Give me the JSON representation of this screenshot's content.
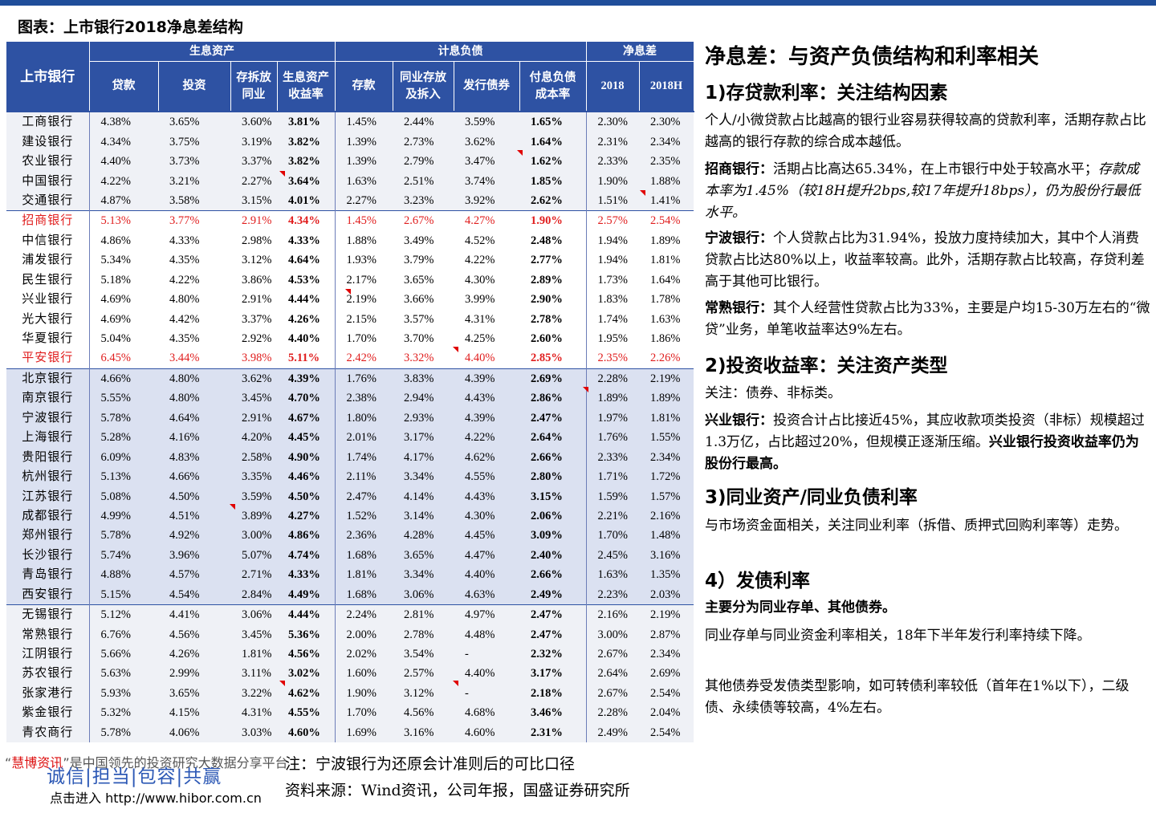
{
  "figure_title": "图表：上市银行2018净息差结构",
  "table": {
    "group_headers": {
      "bank": "上市银行",
      "assets": "生息资产",
      "liabilities": "计息负债",
      "nim": "净息差"
    },
    "sub_headers": {
      "loans": "贷款",
      "invest": "投资",
      "interbank_a_1": "存拆放",
      "interbank_a_2": "同业",
      "asset_yield_1": "生息资产",
      "asset_yield_2": "收益率",
      "deposits": "存款",
      "interbank_l_1": "同业存放",
      "interbank_l_2": "及拆入",
      "bonds": "发行债券",
      "liab_cost_1": "付息负债",
      "liab_cost_2": "成本率",
      "y2018": "2018",
      "y2018h": "2018H"
    },
    "rows": [
      [
        "工商银行",
        "4.38%",
        "3.65%",
        "3.60%",
        "3.81%",
        "1.45%",
        "2.44%",
        "3.59%",
        "1.65%",
        "2.30%",
        "2.30%"
      ],
      [
        "建设银行",
        "4.34%",
        "3.75%",
        "3.19%",
        "3.82%",
        "1.39%",
        "2.73%",
        "3.62%",
        "1.64%",
        "2.31%",
        "2.34%"
      ],
      [
        "农业银行",
        "4.40%",
        "3.73%",
        "3.37%",
        "3.82%",
        "1.39%",
        "2.79%",
        "3.47%",
        "1.62%",
        "2.33%",
        "2.35%"
      ],
      [
        "中国银行",
        "4.22%",
        "3.21%",
        "2.27%",
        "3.64%",
        "1.63%",
        "2.51%",
        "3.74%",
        "1.85%",
        "1.90%",
        "1.88%"
      ],
      [
        "交通银行",
        "4.87%",
        "3.58%",
        "3.15%",
        "4.01%",
        "2.27%",
        "3.23%",
        "3.92%",
        "2.62%",
        "1.51%",
        "1.41%"
      ],
      [
        "招商银行",
        "5.13%",
        "3.77%",
        "2.91%",
        "4.34%",
        "1.45%",
        "2.67%",
        "4.27%",
        "1.90%",
        "2.57%",
        "2.54%"
      ],
      [
        "中信银行",
        "4.86%",
        "4.33%",
        "2.98%",
        "4.33%",
        "1.88%",
        "3.49%",
        "4.52%",
        "2.48%",
        "1.94%",
        "1.89%"
      ],
      [
        "浦发银行",
        "5.34%",
        "4.35%",
        "3.12%",
        "4.64%",
        "1.93%",
        "3.79%",
        "4.22%",
        "2.77%",
        "1.94%",
        "1.81%"
      ],
      [
        "民生银行",
        "5.18%",
        "4.22%",
        "3.86%",
        "4.53%",
        "2.17%",
        "3.65%",
        "4.30%",
        "2.89%",
        "1.73%",
        "1.64%"
      ],
      [
        "兴业银行",
        "4.69%",
        "4.80%",
        "2.91%",
        "4.44%",
        "2.19%",
        "3.66%",
        "3.99%",
        "2.90%",
        "1.83%",
        "1.78%"
      ],
      [
        "光大银行",
        "4.69%",
        "4.42%",
        "3.37%",
        "4.26%",
        "2.15%",
        "3.57%",
        "4.31%",
        "2.78%",
        "1.74%",
        "1.63%"
      ],
      [
        "华夏银行",
        "5.04%",
        "4.35%",
        "2.92%",
        "4.40%",
        "1.70%",
        "3.70%",
        "4.25%",
        "2.60%",
        "1.95%",
        "1.86%"
      ],
      [
        "平安银行",
        "6.45%",
        "3.44%",
        "3.98%",
        "5.11%",
        "2.42%",
        "3.32%",
        "4.40%",
        "2.85%",
        "2.35%",
        "2.26%"
      ],
      [
        "北京银行",
        "4.66%",
        "4.80%",
        "3.62%",
        "4.39%",
        "1.76%",
        "3.83%",
        "4.39%",
        "2.69%",
        "2.28%",
        "2.19%"
      ],
      [
        "南京银行",
        "5.55%",
        "4.80%",
        "3.45%",
        "4.70%",
        "2.38%",
        "2.94%",
        "4.43%",
        "2.86%",
        "1.89%",
        "1.89%"
      ],
      [
        "宁波银行",
        "5.78%",
        "4.64%",
        "2.91%",
        "4.67%",
        "1.80%",
        "2.93%",
        "4.39%",
        "2.47%",
        "1.97%",
        "1.81%"
      ],
      [
        "上海银行",
        "5.28%",
        "4.16%",
        "4.20%",
        "4.45%",
        "2.01%",
        "3.17%",
        "4.22%",
        "2.64%",
        "1.76%",
        "1.55%"
      ],
      [
        "贵阳银行",
        "6.09%",
        "4.83%",
        "2.58%",
        "4.90%",
        "1.74%",
        "4.17%",
        "4.62%",
        "2.66%",
        "2.33%",
        "2.34%"
      ],
      [
        "杭州银行",
        "5.13%",
        "4.66%",
        "3.35%",
        "4.46%",
        "2.11%",
        "3.34%",
        "4.55%",
        "2.80%",
        "1.71%",
        "1.72%"
      ],
      [
        "江苏银行",
        "5.08%",
        "4.50%",
        "3.59%",
        "4.50%",
        "2.47%",
        "4.14%",
        "4.43%",
        "3.15%",
        "1.59%",
        "1.57%"
      ],
      [
        "成都银行",
        "4.99%",
        "4.51%",
        "3.89%",
        "4.27%",
        "1.52%",
        "3.14%",
        "4.30%",
        "2.06%",
        "2.21%",
        "2.16%"
      ],
      [
        "郑州银行",
        "5.78%",
        "4.92%",
        "3.00%",
        "4.86%",
        "2.36%",
        "4.28%",
        "4.45%",
        "3.09%",
        "1.70%",
        "1.48%"
      ],
      [
        "长沙银行",
        "5.74%",
        "3.96%",
        "5.07%",
        "4.74%",
        "1.68%",
        "3.65%",
        "4.47%",
        "2.40%",
        "2.45%",
        "3.16%"
      ],
      [
        "青岛银行",
        "4.88%",
        "4.57%",
        "2.71%",
        "4.33%",
        "1.81%",
        "3.34%",
        "4.40%",
        "2.66%",
        "1.63%",
        "1.35%"
      ],
      [
        "西安银行",
        "5.15%",
        "4.54%",
        "2.84%",
        "4.49%",
        "1.68%",
        "3.06%",
        "4.63%",
        "2.49%",
        "2.23%",
        "2.03%"
      ],
      [
        "无锡银行",
        "5.12%",
        "4.41%",
        "3.06%",
        "4.44%",
        "2.24%",
        "2.81%",
        "4.97%",
        "2.47%",
        "2.16%",
        "2.19%"
      ],
      [
        "常熟银行",
        "6.76%",
        "4.56%",
        "3.45%",
        "5.36%",
        "2.00%",
        "2.78%",
        "4.48%",
        "2.47%",
        "3.00%",
        "2.87%"
      ],
      [
        "江阴银行",
        "5.66%",
        "4.26%",
        "1.81%",
        "4.56%",
        "2.02%",
        "3.54%",
        "-",
        "2.32%",
        "2.67%",
        "2.34%"
      ],
      [
        "苏农银行",
        "5.63%",
        "2.99%",
        "3.11%",
        "3.02%",
        "1.60%",
        "2.57%",
        "4.40%",
        "3.17%",
        "2.64%",
        "2.69%"
      ],
      [
        "张家港行",
        "5.93%",
        "3.65%",
        "3.22%",
        "4.62%",
        "1.90%",
        "3.12%",
        "-",
        "2.18%",
        "2.67%",
        "2.54%"
      ],
      [
        "紫金银行",
        "5.32%",
        "4.15%",
        "4.31%",
        "4.55%",
        "1.70%",
        "4.56%",
        "4.68%",
        "3.46%",
        "2.28%",
        "2.04%"
      ],
      [
        "青农商行",
        "5.78%",
        "4.06%",
        "3.03%",
        "4.60%",
        "1.69%",
        "3.16%",
        "4.60%",
        "2.31%",
        "2.49%",
        "2.54%"
      ]
    ]
  },
  "right": {
    "title": "净息差：与资产负债结构和利率相关",
    "s1_heading": "1)存贷款利率：关注结构因素",
    "s1_p1": "个人/小微贷款占比越高的银行业容易获得较高的贷款利率，活期存款占比越高的银行存款的综合成本越低。",
    "s1_p2_label": "招商银行：",
    "s1_p2_text": "活期占比高达65.34%，在上市银行中处于较高水平；",
    "s1_p2_italic": "存款成本率为1.45%（较18H提升2bps,较17年提升18bps），仍为股份行最低水平。",
    "s1_p3_label": "宁波银行：",
    "s1_p3_text": "个人贷款占比为31.94%，投放力度持续加大，其中个人消费贷款占比达80%以上，收益率较高。此外，活期存款占比较高，存贷利差高于其他可比银行。",
    "s1_p4_label": "常熟银行：",
    "s1_p4_text": "其个人经营性贷款占比为33%，主要是户均15-30万左右的“微贷”业务，单笔收益率达9%左右。",
    "s2_heading": "2)投资收益率：关注资产类型",
    "s2_p1": "关注：债券、非标类。",
    "s2_p2_label": "兴业银行：",
    "s2_p2_text": "投资合计占比接近45%，其应收款项类投资（非标）规模超过1.3万亿，占比超过20%，但规模正逐渐压缩。",
    "s2_p2_bold": "兴业银行投资收益率仍为股份行最高。",
    "s3_heading": "3)同业资产/同业负债利率",
    "s3_p1": "与市场资金面相关，关注同业利率（拆借、质押式回购利率等）走势。",
    "s4_heading": "4）发债利率",
    "s4_p1": "主要分为同业存单、其他债券。",
    "s4_p2": "同业存单与同业资金利率相关，18年下半年发行利率持续下降。",
    "s4_p3": "其他债券受发债类型影响，如可转债利率较低（首年在1%以下），二级债、永续债等较高，4%左右。"
  },
  "footer": {
    "note": "注：宁波银行为还原会计准则后的可比口径",
    "source": "资料来源：Wind资讯，公司年报，国盛证券研究所",
    "wm_brand": "慧博资讯",
    "wm_rest": "”是中国领先的投资研究大数据分享平台",
    "wm_quote_open": "“",
    "wm_slogan": "诚信|担当|包容|共赢",
    "wm_link": "点击进入  http://www.hibor.com.cn"
  }
}
